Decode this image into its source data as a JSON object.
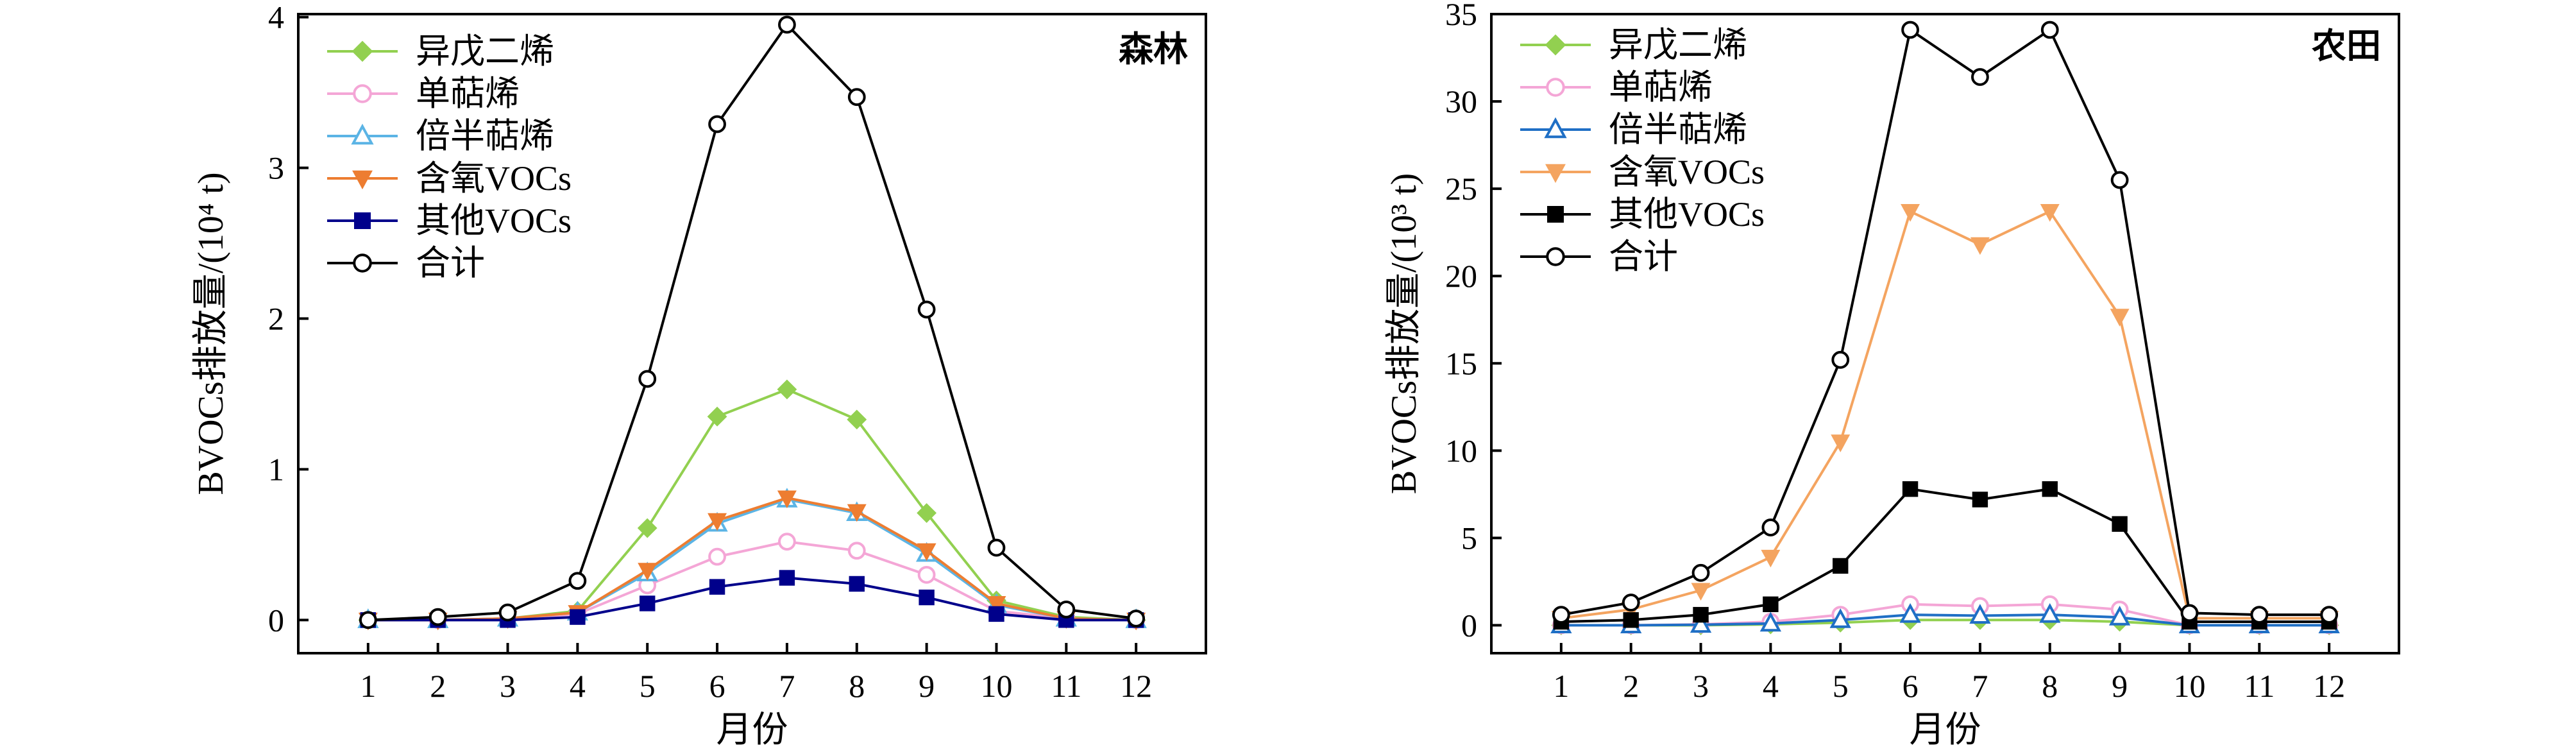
{
  "chart_data": [
    {
      "type": "line",
      "panel_label": "森林",
      "xlabel": "月份",
      "ylabel": "BVOCs排放量/(10⁴ t)",
      "ylim": [
        -0.22,
        4.02
      ],
      "xlim": [
        0,
        13
      ],
      "yticks": [
        0,
        1,
        2,
        3,
        4
      ],
      "categories": [
        1,
        2,
        3,
        4,
        5,
        6,
        7,
        8,
        9,
        10,
        11,
        12
      ],
      "legend_position": "top-left",
      "series": [
        {
          "name": "异戊二烯",
          "color": "#92D050",
          "marker": "diamond",
          "values": [
            0,
            0,
            0.01,
            0.06,
            0.61,
            1.35,
            1.53,
            1.33,
            0.71,
            0.13,
            0.02,
            0
          ]
        },
        {
          "name": "单萜烯",
          "color": "#F4A6D6",
          "marker": "circle-open",
          "values": [
            0,
            0,
            0.01,
            0.04,
            0.23,
            0.42,
            0.52,
            0.46,
            0.3,
            0.06,
            0.01,
            0
          ]
        },
        {
          "name": "倍半萜烯",
          "color": "#5BB4E5",
          "marker": "triangle-up-open",
          "values": [
            0,
            0,
            0.01,
            0.05,
            0.31,
            0.64,
            0.8,
            0.71,
            0.44,
            0.1,
            0.01,
            0
          ]
        },
        {
          "name": "含氧VOCs",
          "color": "#ED7D31",
          "marker": "triangle-down",
          "values": [
            0,
            0,
            0.01,
            0.05,
            0.33,
            0.66,
            0.81,
            0.72,
            0.46,
            0.11,
            0.01,
            0
          ]
        },
        {
          "name": "其他VOCs",
          "color": "#00008B",
          "marker": "square",
          "values": [
            0,
            0,
            0,
            0.02,
            0.11,
            0.22,
            0.28,
            0.24,
            0.15,
            0.04,
            0,
            0
          ]
        },
        {
          "name": "合计",
          "color": "#000000",
          "marker": "circle-open",
          "values": [
            0,
            0.02,
            0.05,
            0.26,
            1.6,
            3.29,
            3.95,
            3.47,
            2.06,
            0.48,
            0.07,
            0.01
          ]
        }
      ]
    },
    {
      "type": "line",
      "panel_label": "农田",
      "xlabel": "月份",
      "ylabel": "BVOCs排放量/(10³ t)",
      "ylim": [
        -1.6,
        35
      ],
      "xlim": [
        0,
        13
      ],
      "yticks": [
        0,
        5,
        10,
        15,
        20,
        25,
        30,
        35
      ],
      "categories": [
        1,
        2,
        3,
        4,
        5,
        6,
        7,
        8,
        9,
        10,
        11,
        12
      ],
      "legend_position": "top-left",
      "series": [
        {
          "name": "异戊二烯",
          "color": "#92D050",
          "marker": "diamond",
          "values": [
            0,
            0,
            0,
            0.05,
            0.15,
            0.3,
            0.3,
            0.3,
            0.2,
            0,
            0,
            0
          ]
        },
        {
          "name": "单萜烯",
          "color": "#F4A6D6",
          "marker": "circle-open",
          "values": [
            0,
            0,
            0.05,
            0.2,
            0.6,
            1.2,
            1.1,
            1.2,
            0.9,
            0,
            0,
            0
          ]
        },
        {
          "name": "倍半萜烯",
          "color": "#1F6FC5",
          "marker": "triangle-up-open",
          "values": [
            0,
            0,
            0.03,
            0.1,
            0.3,
            0.6,
            0.55,
            0.6,
            0.45,
            0,
            0,
            0
          ]
        },
        {
          "name": "含氧VOCs",
          "color": "#F4A460",
          "marker": "triangle-down",
          "values": [
            0.4,
            0.9,
            2.0,
            3.9,
            10.5,
            23.7,
            21.8,
            23.7,
            17.7,
            0.4,
            0.4,
            0.4
          ]
        },
        {
          "name": "其他VOCs",
          "color": "#000000",
          "marker": "square",
          "values": [
            0.2,
            0.3,
            0.6,
            1.2,
            3.4,
            7.8,
            7.2,
            7.8,
            5.8,
            0.2,
            0.2,
            0.2
          ]
        },
        {
          "name": "合计",
          "color": "#000000",
          "marker": "circle-open",
          "values": [
            0.6,
            1.3,
            3.0,
            5.6,
            15.2,
            34.1,
            31.4,
            34.1,
            25.5,
            0.7,
            0.6,
            0.6
          ]
        }
      ]
    }
  ]
}
